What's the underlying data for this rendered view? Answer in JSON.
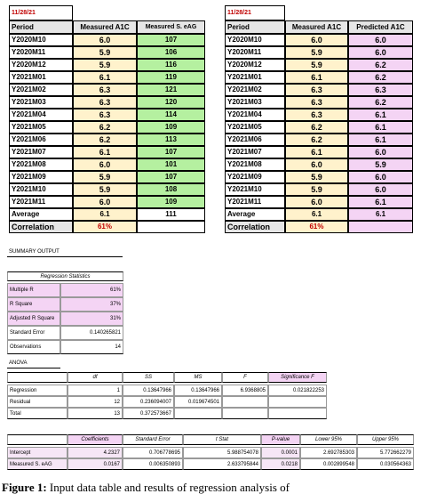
{
  "left_table": {
    "date": "11/28/21",
    "headers": {
      "period": "Period",
      "col1": "Measured A1C",
      "col2": "Measured S. eAG"
    },
    "rows": [
      {
        "period": "Y2020M10",
        "v1": "6.0",
        "v2": "107"
      },
      {
        "period": "Y2020M11",
        "v1": "5.9",
        "v2": "106"
      },
      {
        "period": "Y2020M12",
        "v1": "5.9",
        "v2": "116"
      },
      {
        "period": "Y2021M01",
        "v1": "6.1",
        "v2": "119"
      },
      {
        "period": "Y2021M02",
        "v1": "6.3",
        "v2": "121"
      },
      {
        "period": "Y2021M03",
        "v1": "6.3",
        "v2": "120"
      },
      {
        "period": "Y2021M04",
        "v1": "6.3",
        "v2": "114"
      },
      {
        "period": "Y2021M05",
        "v1": "6.2",
        "v2": "109"
      },
      {
        "period": "Y2021M06",
        "v1": "6.2",
        "v2": "113"
      },
      {
        "period": "Y2021M07",
        "v1": "6.1",
        "v2": "107"
      },
      {
        "period": "Y2021M08",
        "v1": "6.0",
        "v2": "101"
      },
      {
        "period": "Y2021M09",
        "v1": "5.9",
        "v2": "107"
      },
      {
        "period": "Y2021M10",
        "v1": "5.9",
        "v2": "108"
      },
      {
        "period": "Y2021M11",
        "v1": "6.0",
        "v2": "109"
      }
    ],
    "average": {
      "label": "Average",
      "v1": "6.1",
      "v2": "111"
    },
    "correlation": {
      "label": "Correlation",
      "v1": "61%"
    }
  },
  "right_table": {
    "date": "11/28/21",
    "headers": {
      "period": "Period",
      "col1": "Measured A1C",
      "col2": "Predicted A1C"
    },
    "rows": [
      {
        "period": "Y2020M10",
        "v1": "6.0",
        "v2": "6.0"
      },
      {
        "period": "Y2020M11",
        "v1": "5.9",
        "v2": "6.0"
      },
      {
        "period": "Y2020M12",
        "v1": "5.9",
        "v2": "6.2"
      },
      {
        "period": "Y2021M01",
        "v1": "6.1",
        "v2": "6.2"
      },
      {
        "period": "Y2021M02",
        "v1": "6.3",
        "v2": "6.3"
      },
      {
        "period": "Y2021M03",
        "v1": "6.3",
        "v2": "6.2"
      },
      {
        "period": "Y2021M04",
        "v1": "6.3",
        "v2": "6.1"
      },
      {
        "period": "Y2021M05",
        "v1": "6.2",
        "v2": "6.1"
      },
      {
        "period": "Y2021M06",
        "v1": "6.2",
        "v2": "6.1"
      },
      {
        "period": "Y2021M07",
        "v1": "6.1",
        "v2": "6.0"
      },
      {
        "period": "Y2021M08",
        "v1": "6.0",
        "v2": "5.9"
      },
      {
        "period": "Y2021M09",
        "v1": "5.9",
        "v2": "6.0"
      },
      {
        "period": "Y2021M10",
        "v1": "5.9",
        "v2": "6.0"
      },
      {
        "period": "Y2021M11",
        "v1": "6.0",
        "v2": "6.1"
      }
    ],
    "average": {
      "label": "Average",
      "v1": "6.1",
      "v2": "6.1"
    },
    "correlation": {
      "label": "Correlation",
      "v1": "61%"
    }
  },
  "summary": {
    "title": "SUMMARY OUTPUT",
    "regression_stats": {
      "title": "Regression Statistics",
      "rows": [
        {
          "label": "Multiple R",
          "value": "61%"
        },
        {
          "label": "R Square",
          "value": "37%"
        },
        {
          "label": "Adjusted R Square",
          "value": "31%"
        },
        {
          "label": "Standard Error",
          "value": "0.140265821"
        },
        {
          "label": "Observations",
          "value": "14"
        }
      ]
    },
    "anova": {
      "title": "ANOVA",
      "headers": [
        "",
        "df",
        "SS",
        "MS",
        "F",
        "Significance F"
      ],
      "rows": [
        [
          "Regression",
          "1",
          "0.13647966",
          "0.13647966",
          "6.9368805",
          "0.021822253"
        ],
        [
          "Residual",
          "12",
          "0.236094007",
          "0.019674501",
          "",
          ""
        ],
        [
          "Total",
          "13",
          "0.372573667",
          "",
          "",
          ""
        ]
      ]
    },
    "coefficients": {
      "headers": [
        "",
        "Coefficients",
        "Standard Error",
        "t Stat",
        "P-value",
        "Lower 95%",
        "Upper 95%"
      ],
      "rows": [
        [
          "Intercept",
          "4.2327",
          "0.706778695",
          "5.988754078",
          "0.0001",
          "2.692785303",
          "5.772662279"
        ],
        [
          "Measured S. eAG",
          "0.0167",
          "0.006350893",
          "2.633795844",
          "0.0218",
          "0.002899548",
          "0.030564363"
        ]
      ]
    }
  },
  "caption": {
    "label": "Figure 1:",
    "text": "Input data table and results of regression analysis of"
  }
}
